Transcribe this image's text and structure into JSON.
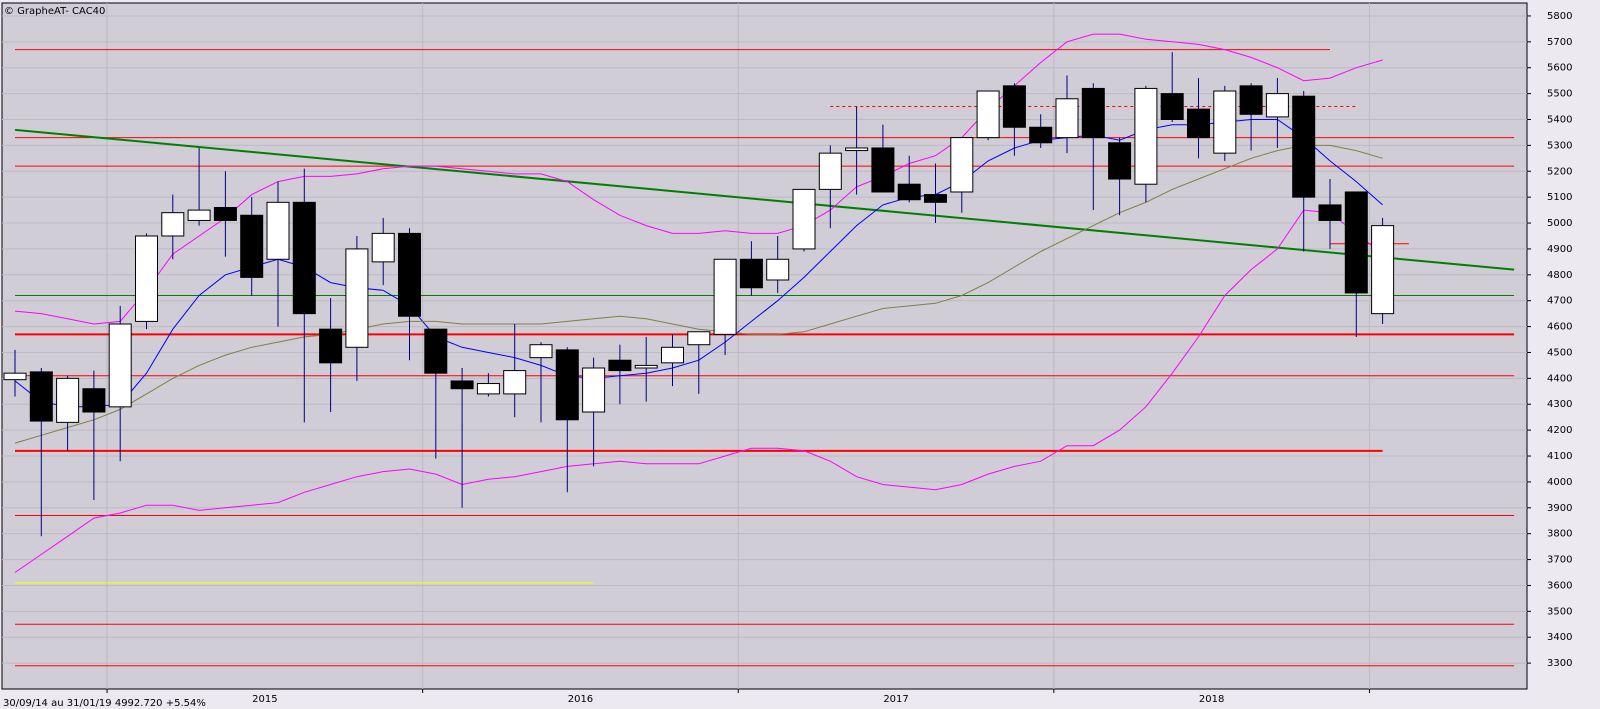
{
  "chart_data": {
    "type": "candlestick",
    "title": "© GrapheAT- CAC40",
    "footer": "30/09/14 au 31/01/19  4992.720  +5.54%",
    "categories": [
      null,
      null,
      null,
      null,
      null,
      null,
      null,
      null,
      null,
      "2015",
      null,
      null,
      null,
      null,
      null,
      null,
      null,
      null,
      null,
      null,
      null,
      "2016",
      null,
      null,
      null,
      null,
      null,
      null,
      null,
      null,
      null,
      null,
      null,
      "2017",
      null,
      null,
      null,
      null,
      null,
      null,
      null,
      null,
      null,
      null,
      null,
      "2018",
      null,
      null,
      null,
      null,
      null,
      null,
      null
    ],
    "open": [
      4395,
      4425,
      4230,
      4360,
      4290,
      4620,
      4950,
      5010,
      5060,
      5030,
      4860,
      5080,
      4590,
      4520,
      4850,
      4960,
      4590,
      4390,
      4340,
      4340,
      4480,
      4510,
      4270,
      4470,
      4440,
      4460,
      4530,
      4570,
      4860,
      4780,
      4900,
      5130,
      5280,
      5290,
      5150,
      5110,
      5120,
      5330,
      5530,
      5370,
      5330,
      5520,
      5310,
      5150,
      5500,
      5440,
      5270,
      5530,
      5410,
      5490,
      5070,
      5120,
      4650
    ],
    "high": [
      4510,
      4440,
      4410,
      4430,
      4680,
      4960,
      5110,
      5290,
      5200,
      5100,
      5160,
      5210,
      4710,
      4950,
      5020,
      4980,
      4590,
      4440,
      4420,
      4610,
      4540,
      4520,
      4480,
      4530,
      4560,
      4570,
      4580,
      4860,
      4930,
      4950,
      5130,
      5300,
      5450,
      5380,
      5260,
      5230,
      5330,
      5510,
      5540,
      5420,
      5570,
      5540,
      5330,
      5530,
      5660,
      5560,
      5530,
      5540,
      5560,
      5510,
      5170,
      5120,
      5020
    ],
    "low": [
      4330,
      3790,
      4120,
      3930,
      4080,
      4590,
      4860,
      4990,
      4870,
      4720,
      4600,
      4230,
      4270,
      4390,
      4760,
      4470,
      4090,
      3900,
      4330,
      4250,
      4230,
      3960,
      4060,
      4300,
      4310,
      4370,
      4340,
      4490,
      4720,
      4730,
      4890,
      4980,
      5110,
      5120,
      5080,
      5000,
      5040,
      5320,
      5260,
      5290,
      5270,
      5050,
      5030,
      5080,
      5390,
      5250,
      5240,
      5280,
      5290,
      4890,
      4900,
      4560,
      4610
    ],
    "close": [
      4420,
      4235,
      4400,
      4270,
      4610,
      4950,
      5040,
      5050,
      5010,
      4790,
      5080,
      4650,
      4460,
      4900,
      4960,
      4640,
      4420,
      4360,
      4380,
      4430,
      4530,
      4240,
      4440,
      4430,
      4450,
      4520,
      4580,
      4860,
      4750,
      4860,
      5130,
      5270,
      5290,
      5120,
      5090,
      5080,
      5330,
      5510,
      5370,
      5310,
      5480,
      5330,
      5170,
      5520,
      5400,
      5330,
      5510,
      5420,
      5500,
      5100,
      5010,
      4730,
      4990
    ],
    "lines": [
      {
        "color": "#0000ff",
        "values": [
          4390,
          4310,
          4290,
          4290,
          4300,
          4420,
          4590,
          4720,
          4800,
          4830,
          4860,
          4830,
          4770,
          4750,
          4740,
          4680,
          4560,
          4520,
          4500,
          4480,
          4450,
          4410,
          4400,
          4410,
          4420,
          4440,
          4470,
          4540,
          4620,
          4700,
          4790,
          4890,
          4990,
          5070,
          5100,
          5110,
          5160,
          5240,
          5290,
          5320,
          5330,
          5340,
          5320,
          5360,
          5380,
          5380,
          5390,
          5400,
          5400,
          5330,
          5240,
          5160,
          5070
        ]
      },
      {
        "color": "#808040",
        "values": [
          4150,
          4180,
          4210,
          4240,
          4280,
          4340,
          4400,
          4450,
          4490,
          4520,
          4540,
          4560,
          4570,
          4590,
          4610,
          4620,
          4620,
          4610,
          4610,
          4610,
          4610,
          4620,
          4630,
          4640,
          4630,
          4610,
          4590,
          4580,
          4570,
          4570,
          4580,
          4610,
          4640,
          4670,
          4680,
          4690,
          4720,
          4770,
          4830,
          4890,
          4940,
          4990,
          5040,
          5080,
          5130,
          5170,
          5210,
          5250,
          5280,
          5300,
          5300,
          5280,
          5250
        ]
      },
      {
        "color": "#ff00ff",
        "values": [
          4660,
          4650,
          4630,
          4610,
          4620,
          4740,
          4880,
          4950,
          5020,
          5110,
          5160,
          5180,
          5180,
          5190,
          5210,
          5220,
          5220,
          5210,
          5200,
          5190,
          5190,
          5160,
          5090,
          5030,
          4990,
          4960,
          4960,
          4970,
          4960,
          4960,
          4990,
          5050,
          5140,
          5180,
          5230,
          5260,
          5330,
          5440,
          5530,
          5620,
          5700,
          5730,
          5730,
          5710,
          5700,
          5690,
          5670,
          5640,
          5600,
          5550,
          5560,
          5600,
          5630
        ]
      },
      {
        "color": "#ff00ff",
        "values": [
          3650,
          3720,
          3790,
          3860,
          3880,
          3910,
          3910,
          3890,
          3900,
          3910,
          3920,
          3960,
          3990,
          4020,
          4040,
          4050,
          4030,
          3990,
          4010,
          4020,
          4040,
          4060,
          4070,
          4080,
          4070,
          4070,
          4070,
          4100,
          4130,
          4130,
          4120,
          4080,
          4020,
          3990,
          3980,
          3970,
          3990,
          4030,
          4060,
          4080,
          4140,
          4140,
          4200,
          4290,
          4420,
          4560,
          4720,
          4820,
          4900,
          5050,
          5040,
          4960,
          4880
        ]
      }
    ],
    "hlines": [
      {
        "value": 5670,
        "color": "#ff0000",
        "from": 0,
        "to": 50
      },
      {
        "value": 5450,
        "color": "#ff0000",
        "from": 31,
        "to": 51,
        "dashed": true
      },
      {
        "value": 5330,
        "color": "#ff0000",
        "from": 0,
        "to": 57
      },
      {
        "value": 5220,
        "color": "#ff0000",
        "from": 0,
        "to": 57
      },
      {
        "value": 4920,
        "color": "#ff0000",
        "from": 50,
        "to": 53
      },
      {
        "value": 4720,
        "color": "#008000",
        "from": 0,
        "to": 57
      },
      {
        "value": 4570,
        "color": "#ff0000",
        "from": 0,
        "to": 57,
        "thick": true
      },
      {
        "value": 4410,
        "color": "#ff0000",
        "from": 0,
        "to": 57
      },
      {
        "value": 4120,
        "color": "#ff0000",
        "from": 0,
        "to": 52,
        "thick": true
      },
      {
        "value": 3870,
        "color": "#ff0000",
        "from": 0,
        "to": 57
      },
      {
        "value": 3610,
        "color": "#ffff00",
        "from": 0,
        "to": 22
      },
      {
        "value": 3450,
        "color": "#ff0000",
        "from": 0,
        "to": 57
      },
      {
        "value": 3290,
        "color": "#ff0000",
        "from": 0,
        "to": 57
      }
    ],
    "trendline": {
      "color": "#008000",
      "from": 0,
      "to": 57,
      "start": 5360,
      "end": 4820
    },
    "year_boundaries": [
      3.5,
      15.5,
      27.5,
      39.5,
      51.5
    ],
    "ylim": [
      3200,
      5850
    ],
    "yticks": [
      3300,
      3400,
      3500,
      3600,
      3700,
      3800,
      3900,
      4000,
      4100,
      4200,
      4300,
      4400,
      4500,
      4600,
      4700,
      4800,
      4900,
      5000,
      5100,
      5200,
      5300,
      5400,
      5500,
      5600,
      5700,
      5800
    ],
    "grid": true,
    "background": "#d0cdd6"
  }
}
